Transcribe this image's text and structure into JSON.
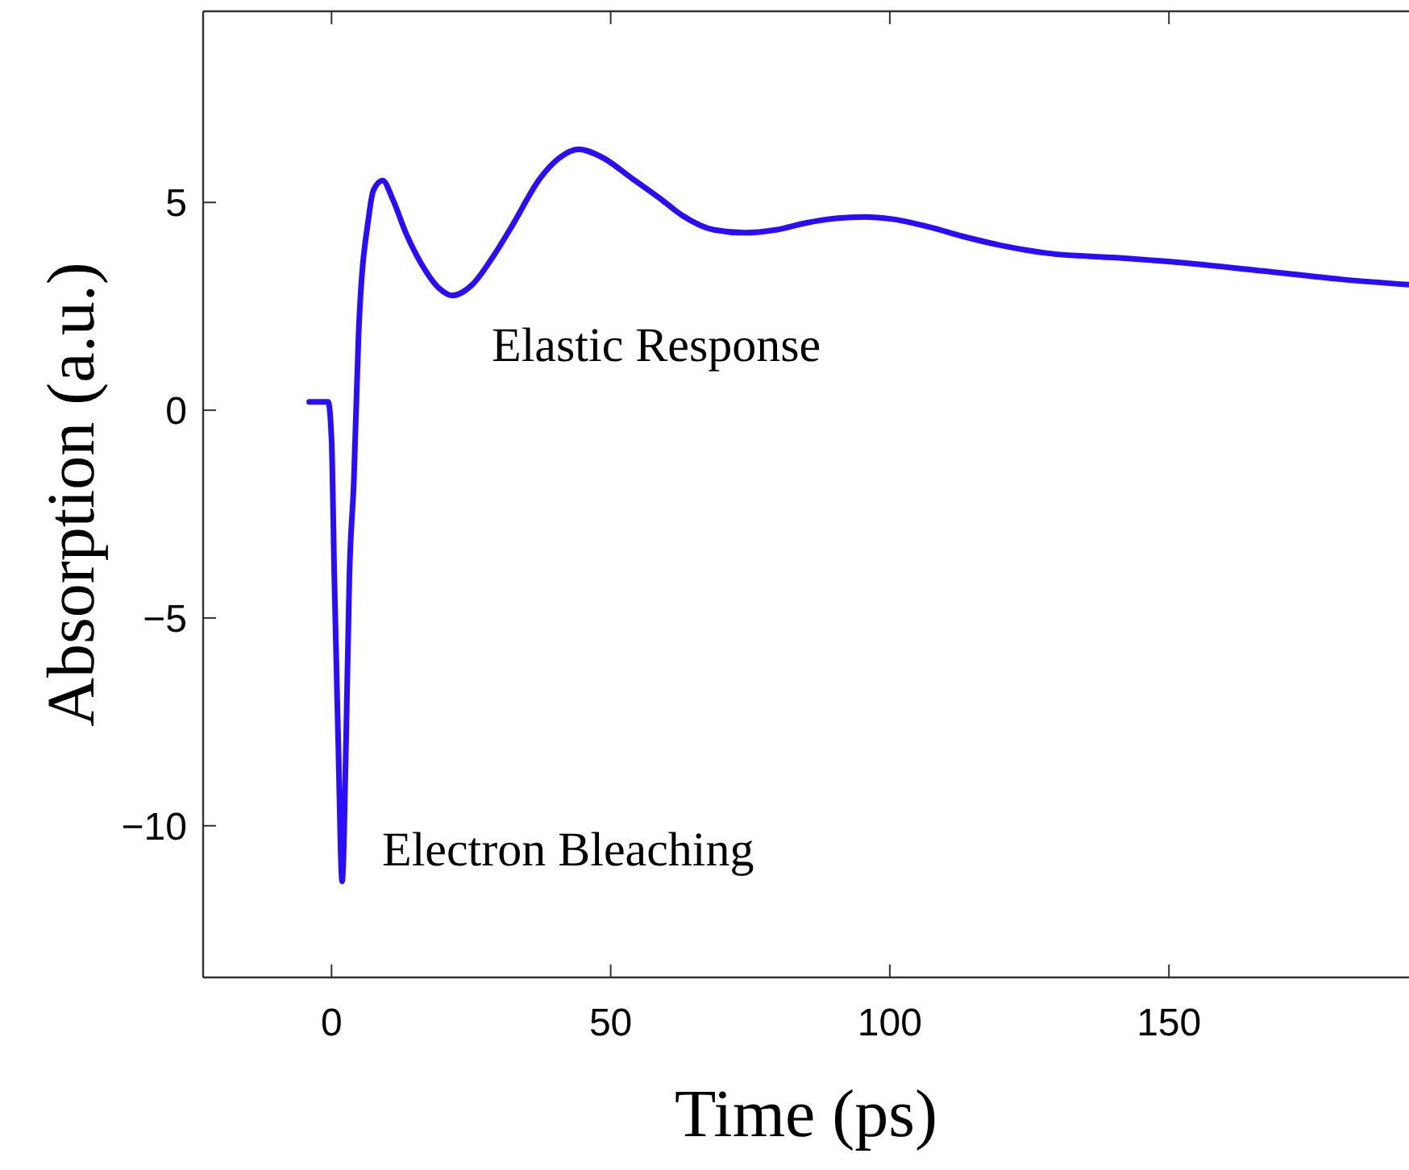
{
  "chart_data": {
    "type": "line",
    "xlabel": "Time (ps)",
    "ylabel": "Absorption (a.u.)",
    "annotations": [
      "Elastic Response",
      "Electron Bleaching"
    ],
    "xlim": [
      -23,
      193
    ],
    "xticks": [
      0,
      50,
      100,
      150
    ],
    "ylim": [
      -13.65,
      9.6
    ],
    "yticks": [
      -10,
      -5,
      0,
      5
    ],
    "grid": false,
    "series": [
      {
        "color": "#2a0cff",
        "x": [
          -4,
          -0.6,
          0,
          0.5,
          1.2,
          1.9,
          2.6,
          3.2,
          4,
          4.85,
          6.65,
          7.5,
          9.15,
          10.95,
          13.3,
          16.1,
          19.3,
          21.6,
          25.2,
          29,
          32.4,
          37.3,
          40.8,
          44.2,
          48.4,
          53.9,
          58.8,
          62.9,
          68.5,
          74,
          79.6,
          85.1,
          90.7,
          95.5,
          100.4,
          107.3,
          112.9,
          119.8,
          128.1,
          140.6,
          153.1,
          166.9,
          180.8,
          193
        ],
        "values": [
          0.2,
          0.2,
          -0.7,
          -4,
          -8,
          -11.34,
          -8,
          -4,
          -1.7,
          1.84,
          4.64,
          5.29,
          5.53,
          5.08,
          4.27,
          3.52,
          2.93,
          2.76,
          3.02,
          3.71,
          4.45,
          5.57,
          6.07,
          6.28,
          6.09,
          5.57,
          5.1,
          4.68,
          4.34,
          4.27,
          4.34,
          4.51,
          4.62,
          4.65,
          4.6,
          4.4,
          4.19,
          3.97,
          3.78,
          3.67,
          3.54,
          3.35,
          3.15,
          3.02
        ]
      }
    ]
  }
}
